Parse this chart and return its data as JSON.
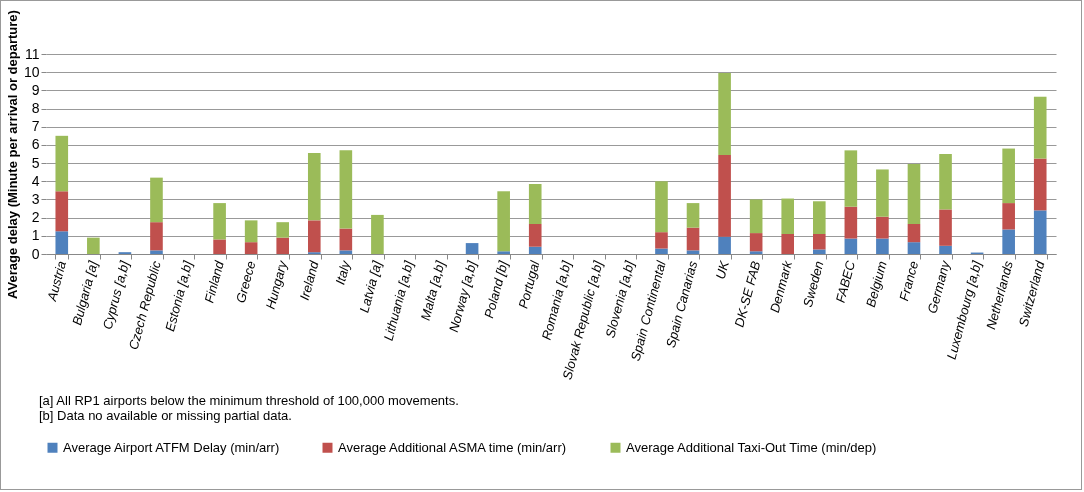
{
  "chart_data": {
    "type": "bar",
    "stacked": true,
    "ylabel": "AVerage delay (Minute per arrival or departure)",
    "categories": [
      "Austria",
      "Bulgaria [a]",
      "Cyprus [a,b]",
      "Czech Republic",
      "Estonia [a,b]",
      "Finland",
      "Greece",
      "Hungary",
      "Ireland",
      "Italy",
      "Latvia [a]",
      "Lithuania [a,b]",
      "Malta [a,b]",
      "Norway [a,b]",
      "Poland [b]",
      "Portugal",
      "Romania [a,b]",
      "Slovak Republic [a,b]",
      "Slovenia [a,b]",
      "Spain Continental",
      "Spain Canarias",
      "UK",
      "DK-SE FAB",
      "Denmark",
      "Sweden",
      "FABEC",
      "Belgium",
      "France",
      "Germany",
      "Luxembourg [a,b]",
      "Netherlands",
      "Switzerland"
    ],
    "series": [
      {
        "name": "Average Airport ATFM Delay (min/arr)",
        "color": "#4f81bd",
        "values": [
          1.25,
          0,
          0.1,
          0.2,
          0,
          null,
          null,
          0,
          0.1,
          0.2,
          0,
          0,
          0,
          0.6,
          0.15,
          0.4,
          0,
          0,
          0,
          0.3,
          0.2,
          0.95,
          0.15,
          null,
          0.25,
          0.85,
          0.85,
          0.65,
          0.45,
          0.08,
          1.35,
          2.4
        ]
      },
      {
        "name": "Average Additional ASMA time (min/arr)",
        "color": "#c0504d",
        "values": [
          2.2,
          0,
          0,
          1.55,
          0,
          0.8,
          0.65,
          0.9,
          1.75,
          1.2,
          0,
          0,
          0,
          0,
          0,
          1.25,
          0,
          0,
          0,
          0.9,
          1.25,
          4.5,
          1.0,
          1.1,
          0.85,
          1.75,
          1.2,
          1.0,
          2.0,
          0,
          1.45,
          2.85
        ]
      },
      {
        "name": "Average Additional Taxi-Out Time (min/dep)",
        "color": "#9bbb59",
        "values": [
          3.05,
          0.9,
          0,
          2.45,
          0,
          2.0,
          1.2,
          0.85,
          3.7,
          4.3,
          2.15,
          0,
          0,
          0,
          3.3,
          2.2,
          0,
          0,
          0,
          2.8,
          1.35,
          4.5,
          1.85,
          1.95,
          1.8,
          3.1,
          2.6,
          3.3,
          3.05,
          0,
          3.0,
          3.4
        ]
      }
    ],
    "ylim": [
      0,
      11
    ],
    "yticks": [
      0,
      1,
      2,
      3,
      4,
      5,
      6,
      7,
      8,
      9,
      10,
      11
    ],
    "grid": "y",
    "legend": "bottom",
    "annotations": [
      "[a] All RP1 airports below the minimum threshold of 100,000 movements.",
      "[b] Data no available or missing partial data."
    ]
  }
}
